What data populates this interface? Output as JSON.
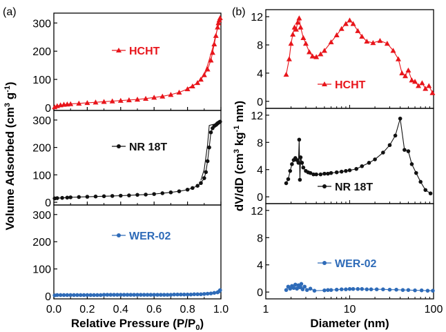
{
  "chart_data": [
    {
      "type": "scatter",
      "panel_label": "(a)",
      "xlabel": "Relative Pressure (P/P",
      "xlabel_sub": "0",
      "xlabel_end": ")",
      "ylabel": "Volume Adsorbed (cm",
      "ylabel_sup1": "3",
      "ylabel_mid": " g",
      "ylabel_sup2": "-1",
      "ylabel_end": ")",
      "xlim": [
        0.0,
        1.0
      ],
      "xticks": [
        "0.0",
        "0.2",
        "0.4",
        "0.6",
        "0.8",
        "1.0"
      ],
      "ylim": [
        -10,
        335
      ],
      "yticks": [
        [
          0,
          100,
          200,
          300
        ],
        [
          0,
          100,
          200,
          300
        ],
        [
          0,
          100,
          200,
          300
        ]
      ],
      "subplots": [
        {
          "legend": "HCHT",
          "color": "#e8151b",
          "marker": "triangle",
          "x": [
            0.005,
            0.02,
            0.04,
            0.06,
            0.08,
            0.1,
            0.15,
            0.2,
            0.25,
            0.3,
            0.35,
            0.4,
            0.45,
            0.5,
            0.55,
            0.6,
            0.65,
            0.7,
            0.75,
            0.8,
            0.83,
            0.86,
            0.88,
            0.9,
            0.92,
            0.94,
            0.95,
            0.96,
            0.97,
            0.98,
            0.985,
            0.99,
            0.995
          ],
          "y": [
            2,
            6,
            9,
            11,
            12,
            13,
            15,
            17,
            19,
            21,
            23,
            25,
            27,
            29,
            32,
            36,
            40,
            46,
            54,
            66,
            76,
            88,
            100,
            116,
            136,
            168,
            195,
            225,
            255,
            285,
            300,
            310,
            318
          ],
          "des_x": [
            0.995,
            0.99,
            0.985,
            0.97,
            0.95,
            0.92,
            0.9,
            0.88,
            0.85,
            0.8
          ],
          "des_y": [
            318,
            305,
            290,
            260,
            210,
            150,
            120,
            100,
            84,
            68
          ]
        },
        {
          "legend": "NR 18T",
          "color": "#111111",
          "marker": "circle",
          "x": [
            0.005,
            0.02,
            0.05,
            0.08,
            0.1,
            0.15,
            0.2,
            0.25,
            0.3,
            0.35,
            0.4,
            0.45,
            0.5,
            0.55,
            0.6,
            0.65,
            0.7,
            0.75,
            0.8,
            0.83,
            0.86,
            0.88,
            0.9,
            0.91,
            0.92,
            0.93,
            0.94,
            0.95,
            0.96,
            0.97,
            0.975,
            0.98,
            0.985,
            0.99,
            0.995
          ],
          "y": [
            14,
            15,
            16,
            17,
            18,
            19,
            20,
            21,
            22,
            23,
            24,
            25,
            27,
            28,
            30,
            33,
            36,
            40,
            46,
            52,
            60,
            70,
            88,
            110,
            150,
            200,
            255,
            270,
            278,
            282,
            285,
            288,
            290,
            292,
            294
          ],
          "des_x": [
            0.995,
            0.98,
            0.96,
            0.94,
            0.93,
            0.92,
            0.9,
            0.88
          ],
          "des_y": [
            294,
            290,
            285,
            282,
            280,
            210,
            120,
            80
          ]
        },
        {
          "legend": "WER-02",
          "color": "#2e6bb8",
          "marker": "circle",
          "x": [
            0.005,
            0.02,
            0.04,
            0.06,
            0.08,
            0.1,
            0.12,
            0.14,
            0.16,
            0.18,
            0.2,
            0.22,
            0.24,
            0.26,
            0.28,
            0.3,
            0.32,
            0.34,
            0.36,
            0.38,
            0.4,
            0.42,
            0.44,
            0.46,
            0.48,
            0.5,
            0.52,
            0.54,
            0.56,
            0.58,
            0.6,
            0.62,
            0.64,
            0.66,
            0.68,
            0.7,
            0.72,
            0.74,
            0.76,
            0.78,
            0.8,
            0.82,
            0.84,
            0.86,
            0.88,
            0.9,
            0.92,
            0.94,
            0.96,
            0.98,
            0.99,
            0.995
          ],
          "y": [
            3,
            4,
            4,
            4,
            4,
            4,
            4,
            4,
            4,
            4,
            4,
            4,
            4,
            4,
            4,
            5,
            5,
            5,
            5,
            5,
            5,
            5,
            5,
            5,
            5,
            5,
            5,
            5,
            5,
            5,
            5,
            5,
            5,
            5,
            5,
            5,
            6,
            6,
            6,
            6,
            6,
            6,
            7,
            7,
            7,
            8,
            9,
            10,
            12,
            14,
            18,
            22
          ]
        }
      ]
    },
    {
      "type": "line",
      "panel_label": "(b)",
      "xlabel": "Diameter (nm)",
      "xscale": "log",
      "xlim": [
        1,
        100
      ],
      "xticks": [
        "1",
        "10",
        "100"
      ],
      "ylabel": "dV/dD (cm",
      "ylabel_sup1": "3",
      "ylabel_mid": " kg",
      "ylabel_sup2": "-1",
      "ylabel_end": " nm)",
      "ylim": [
        -1,
        13
      ],
      "yticks": [
        [
          0,
          4,
          8,
          12
        ],
        [
          0,
          4,
          8,
          12
        ],
        [
          0,
          4,
          8,
          12
        ]
      ],
      "subplots": [
        {
          "legend": "HCHT",
          "color": "#e8151b",
          "marker": "triangle",
          "x": [
            1.75,
            1.9,
            2.0,
            2.1,
            2.2,
            2.3,
            2.4,
            2.5,
            2.6,
            2.8,
            3.0,
            3.3,
            3.6,
            4.0,
            4.5,
            5.0,
            6.0,
            7.0,
            8.0,
            9.0,
            10.0,
            11.0,
            12.5,
            14.0,
            16.0,
            19.0,
            23.0,
            28.0,
            33.0,
            38.0,
            42.0,
            46.0,
            50.0,
            55.0,
            60.0,
            66.0,
            73.0,
            80.0,
            88.0,
            97.0
          ],
          "y": [
            3.8,
            6.0,
            8.2,
            9.5,
            10.5,
            10.2,
            11.2,
            11.8,
            10.5,
            9.0,
            8.2,
            7.0,
            6.4,
            6.3,
            6.7,
            7.2,
            8.4,
            9.4,
            10.3,
            11.0,
            11.5,
            11.0,
            10.0,
            9.2,
            8.5,
            8.3,
            8.6,
            8.2,
            7.2,
            6.0,
            4.0,
            3.6,
            4.4,
            3.0,
            2.8,
            2.2,
            2.6,
            1.8,
            2.2,
            1.2
          ]
        },
        {
          "legend": "NR 18T",
          "color": "#111111",
          "marker": "circle",
          "x": [
            1.75,
            1.85,
            1.95,
            2.05,
            2.15,
            2.25,
            2.35,
            2.45,
            2.5,
            2.55,
            2.6,
            2.7,
            2.8,
            3.0,
            3.2,
            3.4,
            3.7,
            4.0,
            4.5,
            5.0,
            5.5,
            6.0,
            7.0,
            8.0,
            9.0,
            10.0,
            12.0,
            14.0,
            17.0,
            20.0,
            25.0,
            30.0,
            35.0,
            40.0,
            45.0,
            50.0,
            55.0,
            62.0,
            70.0,
            80.0,
            92.0
          ],
          "y": [
            2.0,
            2.6,
            3.8,
            4.8,
            5.4,
            5.7,
            5.4,
            5.0,
            8.4,
            2.5,
            5.8,
            5.0,
            4.3,
            3.8,
            3.6,
            3.5,
            3.3,
            3.3,
            3.3,
            3.4,
            3.4,
            3.5,
            3.6,
            3.7,
            3.8,
            3.9,
            4.1,
            4.5,
            5.0,
            5.5,
            6.5,
            7.6,
            9.0,
            11.5,
            6.9,
            6.7,
            4.8,
            3.5,
            2.2,
            1.0,
            0.5
          ]
        },
        {
          "legend": "WER-02",
          "color": "#2e6bb8",
          "marker": "circle",
          "x": [
            1.75,
            1.85,
            1.95,
            2.05,
            2.15,
            2.25,
            2.35,
            2.45,
            2.55,
            2.65,
            2.75,
            2.9,
            3.1,
            3.4,
            3.8,
            5.0,
            5.5,
            6.0,
            7.0,
            8.0,
            9.0,
            10.0,
            11.0,
            12.5,
            14.0,
            16.0,
            18.0,
            21.0,
            25.0,
            30.0,
            36.0,
            43.0,
            50.0,
            60.0,
            72.0,
            85.0,
            98.0
          ],
          "y": [
            0.3,
            0.8,
            0.5,
            0.9,
            0.6,
            1.1,
            0.5,
            1.0,
            0.7,
            1.2,
            0.4,
            0.8,
            0.3,
            0.5,
            0.2,
            0.25,
            0.3,
            0.3,
            0.35,
            0.4,
            0.4,
            0.45,
            0.45,
            0.45,
            0.45,
            0.4,
            0.4,
            0.4,
            0.4,
            0.35,
            0.35,
            0.3,
            0.3,
            0.25,
            0.25,
            0.2,
            0.2
          ]
        }
      ]
    }
  ]
}
